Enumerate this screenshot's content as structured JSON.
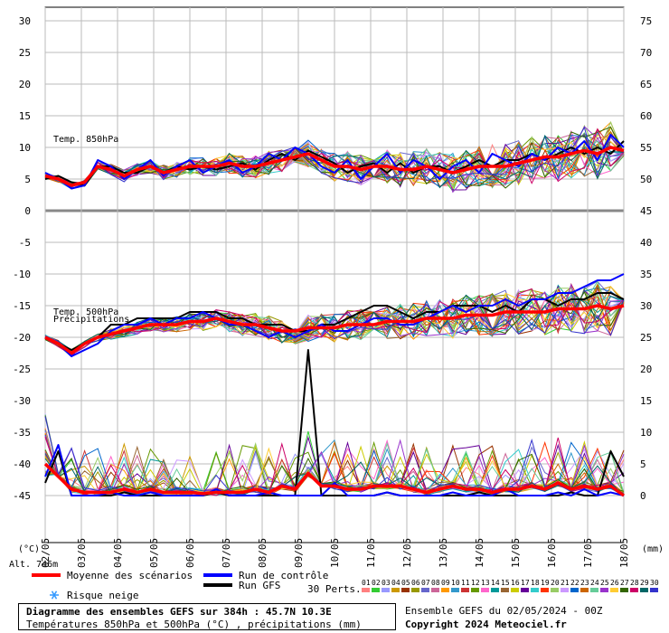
{
  "chart_data": {
    "type": "line",
    "title": "Diagramme des ensembles GEFS sur 384h : 45.7N 10.3E",
    "subtitle": "Températures 850hPa et 500hPa (°C) , précipitations (mm)",
    "left_axis_unit": "(°C)",
    "right_axis_unit": "(mm)",
    "altitude": "Alt. 746m",
    "left_ticks": [
      "30",
      "25",
      "20",
      "15",
      "10",
      "5",
      "0",
      "-5",
      "-10",
      "-15",
      "-20",
      "-25",
      "-30",
      "-35",
      "-40",
      "-45"
    ],
    "right_ticks": [
      "75",
      "70",
      "65",
      "60",
      "55",
      "50",
      "45",
      "40",
      "35",
      "30",
      "25",
      "20",
      "15",
      "10",
      "5",
      "0"
    ],
    "x_labels": [
      "02/05",
      "03/05",
      "04/05",
      "05/05",
      "06/05",
      "07/05",
      "08/05",
      "09/05",
      "10/05",
      "11/05",
      "12/05",
      "13/05",
      "14/05",
      "15/05",
      "16/05",
      "17/05",
      "18/05"
    ],
    "annotations": {
      "t850": "Temp. 850hPa",
      "t500": "Temp. 500hPa",
      "precip": "Précipitations"
    },
    "ylim_left": [
      -45,
      30
    ],
    "ylim_right": [
      0,
      75
    ],
    "grid": true,
    "series": [
      {
        "name": "Moyenne des scénarios",
        "panel": "t850",
        "values": [
          5.5,
          5,
          4,
          4.5,
          7,
          6.5,
          5.5,
          6.5,
          7,
          6,
          6.5,
          7,
          7,
          7,
          7.5,
          7,
          7,
          7.5,
          8,
          8.5,
          9,
          8,
          7,
          7,
          6.5,
          7,
          7,
          6.5,
          6.5,
          7,
          6.5,
          6,
          6.5,
          7,
          7,
          7,
          7.5,
          8,
          8.5,
          8.5,
          9,
          9.5,
          9,
          10,
          9.5
        ]
      },
      {
        "name": "Run de contrôle",
        "panel": "t850",
        "values": [
          6,
          5,
          3.5,
          4,
          8,
          7,
          5,
          6.5,
          8,
          5.5,
          7,
          8,
          6,
          7,
          8,
          6,
          7,
          9,
          8,
          10,
          9,
          7,
          6,
          8,
          5,
          7,
          9,
          6,
          8,
          7,
          5,
          7,
          8,
          6,
          9,
          8,
          7,
          9,
          8,
          10,
          9,
          11,
          8,
          12,
          10
        ]
      },
      {
        "name": "Run GFS",
        "panel": "t850",
        "values": [
          5,
          5.5,
          4.5,
          4,
          7,
          7,
          6,
          6,
          7,
          6,
          7,
          6.5,
          7,
          6.5,
          7,
          7.5,
          6.5,
          8,
          9,
          8,
          9.5,
          8.5,
          7.5,
          6,
          7,
          7.5,
          6,
          7.5,
          6,
          7,
          7,
          6,
          7,
          8,
          7,
          8,
          8,
          9,
          8,
          9,
          10,
          9,
          10,
          9,
          11
        ]
      },
      {
        "name": "Moyenne des scénarios",
        "panel": "t500",
        "values": [
          -20,
          -21,
          -22.5,
          -21,
          -20,
          -19.5,
          -19,
          -18.5,
          -18,
          -18,
          -18,
          -17.5,
          -17.5,
          -17,
          -17.5,
          -18,
          -18,
          -18.5,
          -19,
          -19,
          -18.5,
          -18.5,
          -18.5,
          -18,
          -18,
          -18,
          -17.5,
          -17.5,
          -17.5,
          -17,
          -17,
          -17,
          -16.5,
          -16.5,
          -16.5,
          -16,
          -16,
          -16,
          -16,
          -15.5,
          -15.5,
          -15.5,
          -15,
          -15.5,
          -15
        ]
      },
      {
        "name": "Run de contrôle",
        "panel": "t500",
        "values": [
          -20,
          -21,
          -23,
          -22,
          -21,
          -19,
          -18,
          -18,
          -17,
          -18,
          -17,
          -17,
          -16,
          -17,
          -18,
          -18,
          -19,
          -20,
          -19,
          -20,
          -19,
          -18,
          -19,
          -19,
          -18,
          -17,
          -17,
          -18,
          -18,
          -17,
          -16,
          -15,
          -16,
          -15,
          -15,
          -14,
          -15,
          -14,
          -14,
          -13,
          -13,
          -12,
          -11,
          -11,
          -10
        ]
      },
      {
        "name": "Run GFS",
        "panel": "t500",
        "values": [
          -20,
          -21,
          -22,
          -21,
          -20,
          -18,
          -18,
          -17,
          -17,
          -17,
          -17,
          -16,
          -16,
          -16,
          -17,
          -17,
          -18,
          -18,
          -18,
          -19,
          -19,
          -18,
          -18,
          -17,
          -16,
          -15,
          -15,
          -16,
          -17,
          -16,
          -16,
          -15,
          -15,
          -15,
          -16,
          -15,
          -16,
          -14,
          -14,
          -15,
          -14,
          -14,
          -13,
          -13,
          -14
        ]
      },
      {
        "name": "Moyenne des scénarios",
        "panel": "precip",
        "values": [
          5,
          3,
          1,
          0.5,
          0.5,
          0.5,
          1,
          0.5,
          1,
          0.5,
          0.5,
          0.5,
          0.3,
          0.5,
          0.5,
          0.5,
          1,
          0.5,
          1.5,
          1,
          3.5,
          1.5,
          1.5,
          1,
          1,
          1.5,
          1.5,
          1.5,
          1,
          0.5,
          1,
          1.5,
          1,
          1,
          0.5,
          1,
          1,
          1.5,
          1,
          2,
          1,
          1.5,
          1,
          1.5,
          0
        ]
      },
      {
        "name": "Run de contrôle",
        "panel": "precip",
        "values": [
          3,
          8,
          0,
          0,
          0,
          0.5,
          0,
          0,
          0.5,
          0,
          0,
          0,
          0,
          1,
          0,
          0,
          0,
          0.5,
          0,
          0,
          0,
          0,
          2,
          0,
          0,
          0,
          0.5,
          0,
          0,
          0,
          0,
          0.5,
          0,
          0,
          0,
          1,
          0,
          0,
          0,
          0.5,
          0,
          1,
          0,
          0.5,
          0
        ]
      },
      {
        "name": "Run GFS",
        "panel": "precip",
        "values": [
          2,
          7,
          0,
          0,
          0,
          0,
          0.5,
          0,
          0,
          0,
          0,
          0,
          0,
          0.5,
          0,
          0,
          0,
          0,
          0,
          0,
          23,
          0,
          0,
          0,
          0,
          0,
          0.5,
          0,
          0,
          0,
          0,
          0,
          0,
          0.5,
          0,
          0,
          0,
          0,
          0,
          0,
          0.5,
          0,
          0,
          7,
          3
        ]
      }
    ]
  },
  "legend": {
    "mean_label": "Moyenne des scénarios",
    "control_label": "Run de contrôle",
    "gfs_label": "Run GFS",
    "snow_label": "Risque neige",
    "perts_label": "30 Perts.",
    "pert_numbers": [
      "01",
      "02",
      "03",
      "04",
      "05",
      "06",
      "07",
      "08",
      "09",
      "10",
      "11",
      "12",
      "13",
      "14",
      "15",
      "16",
      "17",
      "18",
      "19",
      "20",
      "21",
      "22",
      "23",
      "24",
      "25",
      "26",
      "27",
      "28",
      "29",
      "30"
    ],
    "colors": {
      "mean": "#ff0000",
      "control": "#0000ff",
      "gfs": "#000000",
      "snow": "#3399ff",
      "perts": [
        "#ff8080",
        "#33cc33",
        "#9999ff",
        "#cc9900",
        "#993300",
        "#999900",
        "#6666cc",
        "#cc6699",
        "#ff9900",
        "#3399cc",
        "#cc3333",
        "#669900",
        "#ff66cc",
        "#009999",
        "#996633",
        "#cccc00",
        "#660099",
        "#33cccc",
        "#ff3300",
        "#99cc66",
        "#cc99ff",
        "#0066cc",
        "#cc6600",
        "#66cc99",
        "#9933cc",
        "#ffcc33",
        "#336600",
        "#cc0066",
        "#006666",
        "#3333cc"
      ]
    }
  },
  "footer": {
    "title": "Diagramme des ensembles GEFS sur 384h : 45.7N 10.3E",
    "subtitle": "Températures 850hPa et 500hPa (°C) , précipitations (mm)",
    "run_info": "Ensemble GEFS du 02/05/2024 - 00Z",
    "copyright": "Copyright 2024 Meteociel.fr"
  }
}
